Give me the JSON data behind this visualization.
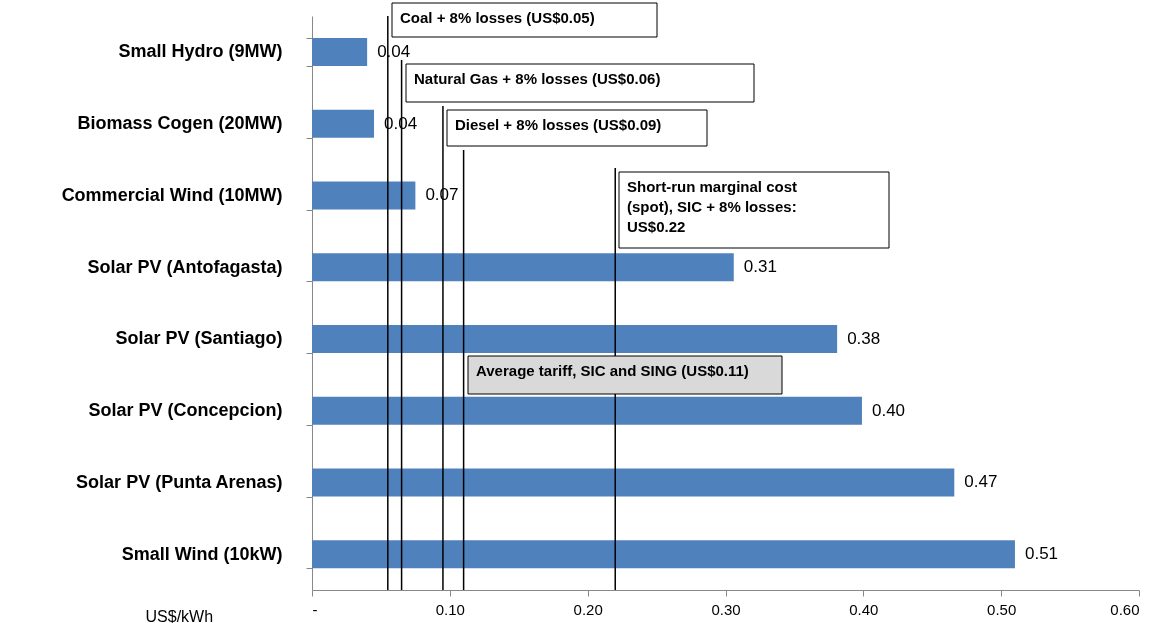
{
  "chart_data": {
    "type": "bar",
    "orientation": "horizontal",
    "xlabel": "US$/kWh",
    "categories": [
      "Small Hydro (9MW)",
      "Biomass Cogen (20MW)",
      "Commercial Wind (10MW)",
      "Solar PV (Antofagasta)",
      "Solar PV (Santiago)",
      "Solar PV (Concepcion)",
      "Solar PV (Punta Arenas)",
      "Small Wind (10kW)"
    ],
    "values": [
      0.04,
      0.045,
      0.075,
      0.306,
      0.381,
      0.399,
      0.466,
      0.51
    ],
    "value_labels": [
      "0.04",
      "0.04",
      "0.07",
      "0.31",
      "0.38",
      "0.40",
      "0.47",
      "0.51"
    ],
    "color": "#4f81bd",
    "xlim": [
      0,
      0.6
    ],
    "xticks": [
      {
        "value": 0,
        "label": "-"
      },
      {
        "value": 0.1,
        "label": "0.10"
      },
      {
        "value": 0.2,
        "label": "0.20"
      },
      {
        "value": 0.3,
        "label": "0.30"
      },
      {
        "value": 0.4,
        "label": "0.40"
      },
      {
        "value": 0.5,
        "label": "0.50"
      },
      {
        "value": 0.6,
        "label": "0.60"
      }
    ],
    "grid": false,
    "ref_lines": [
      {
        "axis": "x",
        "value": 0.055,
        "label": "Coal + 8% losses (US$0.05)",
        "color": "#000000"
      },
      {
        "axis": "x",
        "value": 0.065,
        "label": "Natural Gas + 8% losses (US$0.06)",
        "color": "#000000"
      },
      {
        "axis": "x",
        "value": 0.095,
        "label": "Diesel + 8% losses (US$0.09)",
        "color": "#000000"
      },
      {
        "axis": "x",
        "value": 0.11,
        "label": "Average tariff, SIC and SING (US$0.11)",
        "color": "#000000"
      },
      {
        "axis": "x",
        "value": 0.22,
        "label": "Short-run marginal cost (spot), SIC + 8% losses: US$0.22",
        "color": "#000000"
      }
    ]
  }
}
